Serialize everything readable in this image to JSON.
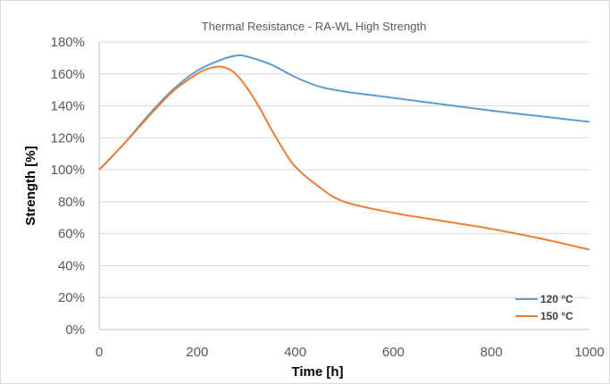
{
  "chart_data": {
    "type": "line",
    "title": "Thermal Resistance - RA-WL High Strength",
    "xlabel": "Time [h]",
    "ylabel": "Strength [%]",
    "xlim": [
      0,
      1000
    ],
    "ylim": [
      0,
      180
    ],
    "x_ticks": [
      "0",
      "200",
      "400",
      "600",
      "800",
      "1000"
    ],
    "x_tick_values": [
      0,
      200,
      400,
      600,
      800,
      1000
    ],
    "y_ticks": [
      "0%",
      "20%",
      "40%",
      "60%",
      "80%",
      "100%",
      "120%",
      "140%",
      "160%",
      "180%"
    ],
    "y_tick_values": [
      0,
      20,
      40,
      60,
      80,
      100,
      120,
      140,
      160,
      180
    ],
    "grid": "horizontal",
    "legend_position": "bottom-right",
    "series": [
      {
        "name": "120 °C",
        "color": "#5B9BD5",
        "x": [
          0,
          50,
          100,
          150,
          200,
          250,
          280,
          300,
          350,
          400,
          450,
          500,
          600,
          700,
          800,
          900,
          1000
        ],
        "y": [
          100,
          116,
          134,
          150,
          162,
          169,
          171.5,
          171,
          166,
          158,
          152,
          149,
          145,
          141,
          137,
          133.5,
          130
        ]
      },
      {
        "name": "150 °C",
        "color": "#ED7D31",
        "x": [
          0,
          50,
          100,
          150,
          200,
          225,
          250,
          275,
          300,
          325,
          350,
          375,
          400,
          450,
          500,
          600,
          700,
          800,
          900,
          1000
        ],
        "y": [
          100,
          116,
          133,
          149,
          160,
          163.5,
          164.5,
          161,
          152,
          140,
          126,
          113,
          102,
          89,
          80,
          73,
          68,
          63,
          57,
          50
        ]
      }
    ]
  }
}
